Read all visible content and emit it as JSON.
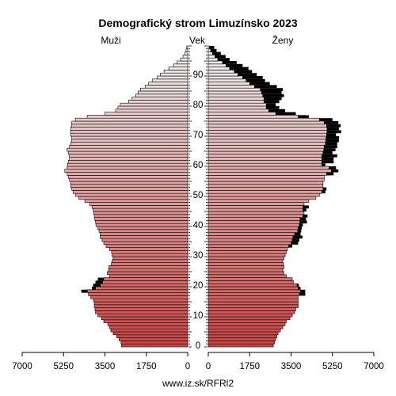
{
  "chart_data": {
    "type": "population-pyramid",
    "title": "Demografický strom Limuzínsko 2023",
    "left_label": "Muži",
    "center_label": "Vek",
    "right_label": "Ženy",
    "source": "www.iz.sk/RFRl2",
    "x_ticks": [
      "7000",
      "5250",
      "3500",
      "1750",
      "0"
    ],
    "x_ticks_right": [
      "0",
      "1750",
      "3500",
      "5250",
      "7000"
    ],
    "xlim": [
      0,
      7000
    ],
    "age_ticks": [
      "0",
      "10",
      "20",
      "30",
      "40",
      "50",
      "60",
      "70",
      "80",
      "90"
    ],
    "age_range": [
      0,
      100
    ],
    "series": [
      {
        "name": "Muži",
        "values": [
          2800,
          2820,
          2900,
          3000,
          3150,
          3250,
          3300,
          3380,
          3550,
          3650,
          3800,
          3900,
          3920,
          3950,
          3950,
          3980,
          4100,
          4200,
          4250,
          3900,
          3700,
          3600,
          3550,
          3300,
          3400,
          3350,
          3330,
          3230,
          3200,
          3150,
          3200,
          3220,
          3300,
          3450,
          3550,
          3620,
          3700,
          3700,
          3750,
          3800,
          3880,
          3900,
          3930,
          3950,
          3980,
          4000,
          4050,
          4150,
          4350,
          4600,
          4750,
          4850,
          4900,
          4950,
          4950,
          5000,
          5050,
          5100,
          5200,
          5100,
          5080,
          5050,
          5000,
          5000,
          5050,
          5100,
          5000,
          4950,
          4900,
          4900,
          4950,
          4950,
          4950,
          4920,
          4900,
          4750,
          4250,
          3500,
          3050,
          2950,
          2850,
          2500,
          2350,
          2200,
          2100,
          2000,
          1800,
          1650,
          1500,
          1300,
          1150,
          1000,
          800,
          600,
          450,
          300,
          200,
          120,
          70,
          40
        ],
        "extra": [
          0,
          0,
          0,
          0,
          0,
          0,
          0,
          0,
          0,
          0,
          0,
          0,
          0,
          0,
          0,
          0,
          0,
          0,
          250,
          150,
          300,
          300,
          250,
          0,
          0,
          0,
          0,
          0,
          0,
          0,
          0,
          0,
          0,
          0,
          0,
          0,
          0,
          0,
          0,
          0,
          0,
          0,
          0,
          0,
          0,
          0,
          0,
          0,
          0,
          0,
          0,
          0,
          0,
          0,
          0,
          0,
          0,
          0,
          0,
          0,
          0,
          0,
          0,
          0,
          0,
          0,
          0,
          0,
          0,
          0,
          0,
          0,
          0,
          0,
          0,
          0,
          0,
          0,
          0,
          0,
          0,
          0,
          0,
          0,
          0,
          0,
          0,
          0,
          0,
          0,
          0,
          0,
          0,
          0,
          0,
          0,
          0,
          0,
          0,
          0
        ],
        "color": "#c84a4a"
      },
      {
        "name": "Ženy",
        "values": [
          2750,
          2800,
          2850,
          2900,
          2950,
          3050,
          3150,
          3250,
          3300,
          3450,
          3550,
          3650,
          3700,
          3800,
          3800,
          3800,
          3800,
          3850,
          3900,
          3800,
          3750,
          3600,
          3550,
          3300,
          3200,
          3150,
          3200,
          3170,
          3150,
          3200,
          3250,
          3300,
          3350,
          3400,
          3500,
          3550,
          3580,
          3650,
          3780,
          3800,
          3850,
          3870,
          3880,
          4000,
          4050,
          4000,
          4000,
          4050,
          4250,
          4550,
          4700,
          4800,
          4850,
          4850,
          4850,
          4900,
          4900,
          5000,
          5200,
          5100,
          4800,
          4800,
          4800,
          4800,
          4850,
          4880,
          4900,
          4950,
          4970,
          4980,
          5000,
          5020,
          5020,
          5000,
          4900,
          4700,
          3800,
          2850,
          2550,
          2450,
          2450,
          2350,
          2350,
          2300,
          2250,
          2200,
          1950,
          1750,
          1600,
          1450,
          1250,
          1100,
          900,
          750,
          600,
          400,
          280,
          180,
          100,
          50
        ],
        "extra": [
          0,
          0,
          0,
          0,
          0,
          0,
          0,
          0,
          0,
          0,
          0,
          0,
          0,
          0,
          0,
          0,
          0,
          250,
          200,
          100,
          80,
          0,
          0,
          0,
          0,
          0,
          0,
          0,
          0,
          0,
          0,
          0,
          0,
          150,
          300,
          300,
          400,
          250,
          150,
          150,
          150,
          300,
          250,
          200,
          0,
          150,
          250,
          0,
          0,
          0,
          0,
          150,
          150,
          0,
          0,
          0,
          0,
          300,
          300,
          300,
          150,
          500,
          500,
          650,
          400,
          500,
          550,
          500,
          550,
          550,
          400,
          600,
          500,
          600,
          600,
          550,
          450,
          850,
          700,
          550,
          400,
          650,
          750,
          900,
          850,
          950,
          950,
          850,
          800,
          850,
          800,
          750,
          800,
          700,
          600,
          500,
          450,
          350,
          250,
          200
        ],
        "color": "#c84a4a"
      }
    ],
    "overlay_color": "#000000",
    "bar_outline": "#000000"
  }
}
